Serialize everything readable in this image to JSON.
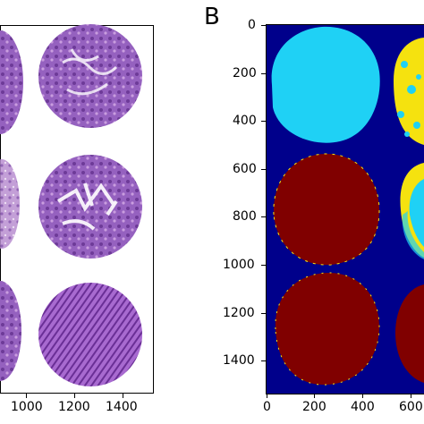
{
  "panel_a": {
    "x_tick_labels": [
      "1000",
      "1200",
      "1400"
    ]
  },
  "panel_b": {
    "letter": "B",
    "x_tick_labels": [
      "0",
      "200",
      "400",
      "600"
    ],
    "y_tick_labels": [
      "0",
      "200",
      "400",
      "600",
      "800",
      "1000",
      "1200",
      "1400"
    ]
  },
  "colors": {
    "background_map": "#00008b",
    "cyan_region": "#1fd1f5",
    "yellow_region": "#f5e20f",
    "dark_red_region": "#800000",
    "he_stain_purple": "#8a4fb5",
    "he_stain_pink": "#c48fd6"
  }
}
